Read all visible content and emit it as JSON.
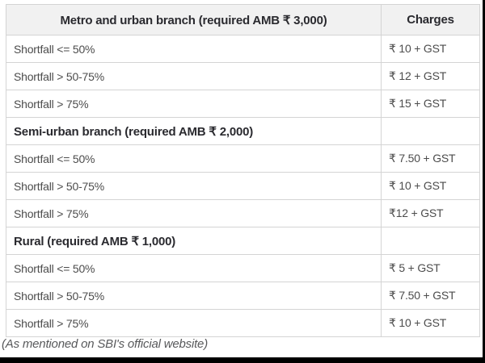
{
  "table": {
    "header": {
      "label_col": "Metro and urban branch (required AMB ₹ 3,000)",
      "charges_col": "Charges"
    },
    "rows": [
      {
        "label": "Shortfall <= 50%",
        "charge": "₹ 10 + GST",
        "section": false
      },
      {
        "label": "Shortfall > 50-75%",
        "charge": "₹ 12 + GST",
        "section": false
      },
      {
        "label": "Shortfall > 75%",
        "charge": "₹ 15 + GST",
        "section": false
      },
      {
        "label": "Semi-urban branch (required AMB ₹ 2,000)",
        "charge": "",
        "section": true
      },
      {
        "label": "Shortfall <= 50%",
        "charge": "₹ 7.50 + GST",
        "section": false
      },
      {
        "label": "Shortfall > 50-75%",
        "charge": "₹ 10 + GST",
        "section": false
      },
      {
        "label": "Shortfall > 75%",
        "charge": "₹12 + GST",
        "section": false
      },
      {
        "label": "Rural (required AMB ₹ 1,000)",
        "charge": "",
        "section": true
      },
      {
        "label": "Shortfall <= 50%",
        "charge": "₹ 5 + GST",
        "section": false
      },
      {
        "label": "Shortfall > 50-75%",
        "charge": "₹ 7.50 + GST",
        "section": false
      },
      {
        "label": "Shortfall > 75%",
        "charge": "₹ 10 + GST",
        "section": false
      }
    ]
  },
  "footer": {
    "note": "(As mentioned on SBI's official website)"
  },
  "colors": {
    "header_bg": "#f1f1f1",
    "border": "#d4d4d4",
    "body_text": "#4c4c4c",
    "bold_text": "#2a2a2f",
    "footer_text": "#58595b",
    "frame": "#000000"
  },
  "chart_data": {
    "type": "table",
    "title": "SBI minimum balance shortfall charges",
    "columns": [
      "Metro and urban branch (required AMB ₹ 3,000)",
      "Charges"
    ],
    "rows": [
      [
        "Shortfall <= 50%",
        "₹ 10 + GST"
      ],
      [
        "Shortfall > 50-75%",
        "₹ 12 + GST"
      ],
      [
        "Shortfall > 75%",
        "₹ 15 + GST"
      ],
      [
        "Semi-urban branch (required AMB ₹ 2,000)",
        ""
      ],
      [
        "Shortfall <= 50%",
        "₹ 7.50 + GST"
      ],
      [
        "Shortfall > 50-75%",
        "₹ 10 + GST"
      ],
      [
        "Shortfall > 75%",
        "₹12 + GST"
      ],
      [
        "Rural (required AMB ₹ 1,000)",
        ""
      ],
      [
        "Shortfall <= 50%",
        "₹ 5 + GST"
      ],
      [
        "Shortfall > 50-75%",
        "₹ 7.50 + GST"
      ],
      [
        "Shortfall > 75%",
        "₹ 10 + GST"
      ]
    ],
    "annotations": [
      "(As mentioned on SBI's official website)"
    ]
  }
}
